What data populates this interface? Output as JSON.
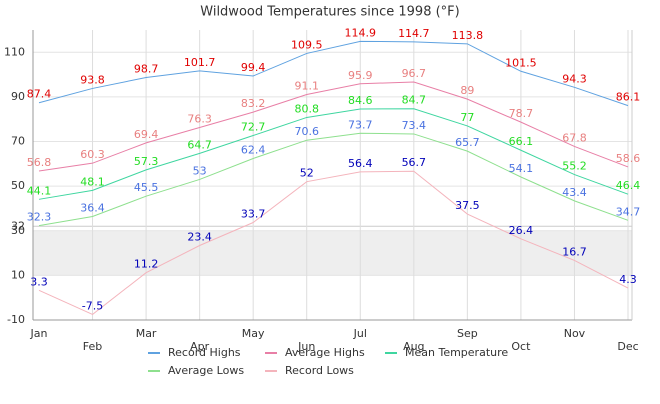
{
  "chart_data": {
    "type": "line",
    "title": "Wildwood Temperatures since 1998 (°F)",
    "categories": [
      "Jan",
      "Feb",
      "Mar",
      "Apr",
      "May",
      "Jun",
      "Jul",
      "Aug",
      "Sep",
      "Oct",
      "Nov",
      "Dec"
    ],
    "series": [
      {
        "name": "Record Highs",
        "color": "#5fa2e0",
        "label_color": "#e00000",
        "values": [
          87.4,
          93.8,
          98.7,
          101.7,
          99.4,
          109.5,
          114.9,
          114.7,
          113.8,
          101.5,
          94.3,
          86.1
        ]
      },
      {
        "name": "Average Highs",
        "color": "#e87fa6",
        "label_color": "#e88080",
        "values": [
          56.8,
          60.3,
          69.4,
          76.3,
          83.2,
          91.1,
          95.9,
          96.7,
          89.0,
          78.7,
          67.8,
          58.6
        ]
      },
      {
        "name": "Mean Temperature",
        "color": "#3fd6a0",
        "label_color": "#22dd22",
        "values": [
          44.1,
          48.1,
          57.3,
          64.7,
          72.7,
          80.8,
          84.6,
          84.7,
          77.0,
          66.1,
          55.2,
          46.4
        ]
      },
      {
        "name": "Average Lows",
        "color": "#8ee08e",
        "label_color": "#4a72e0",
        "values": [
          32.3,
          36.4,
          45.5,
          53.0,
          62.4,
          70.6,
          73.7,
          73.4,
          65.7,
          54.1,
          43.4,
          34.7
        ]
      },
      {
        "name": "Record Lows",
        "color": "#f4b4bc",
        "label_color": "#0000b8",
        "values": [
          3.3,
          -7.5,
          11.2,
          23.4,
          33.7,
          52.0,
          56.4,
          56.7,
          37.5,
          26.4,
          16.7,
          4.3
        ]
      }
    ],
    "ylim": [
      -10,
      120
    ],
    "yticks": [
      -10,
      10,
      30,
      50,
      70,
      90,
      110
    ],
    "freezing_line": 32,
    "shaded_band": [
      10,
      30
    ],
    "grid": true
  }
}
